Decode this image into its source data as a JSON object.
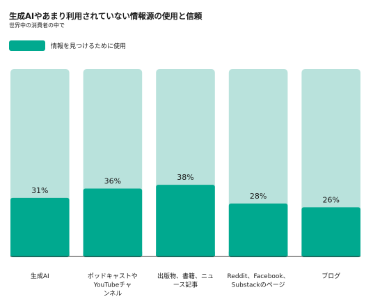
{
  "title": "生成AIやあまり利用されていない情報源の使用と信頼",
  "subtitle": "世界中の消費者の中で",
  "legend": {
    "label": "情報を見つけるために使用"
  },
  "colors": {
    "bar": "#00a98f",
    "track": "#b9e2dc",
    "baseline": "#333333"
  },
  "chart_data": {
    "type": "bar",
    "categories": [
      "生成AI",
      "ポッドキャストや\nYouTubeチャ\nンネル",
      "出版物、書籍、ニュ\nース記事",
      "Reddit、Facebook、\nSubstackのページ",
      "ブログ"
    ],
    "series": [
      {
        "name": "情報を見つけるために使用",
        "values": [
          31,
          36,
          38,
          28,
          26
        ]
      }
    ],
    "value_format": "{v}%",
    "ylim": [
      0,
      100
    ],
    "title": "生成AIやあまり利用されていない情報源の使用と信頼",
    "subtitle": "世界中の消費者の中で",
    "grid": false,
    "legend_position": "top-left"
  }
}
